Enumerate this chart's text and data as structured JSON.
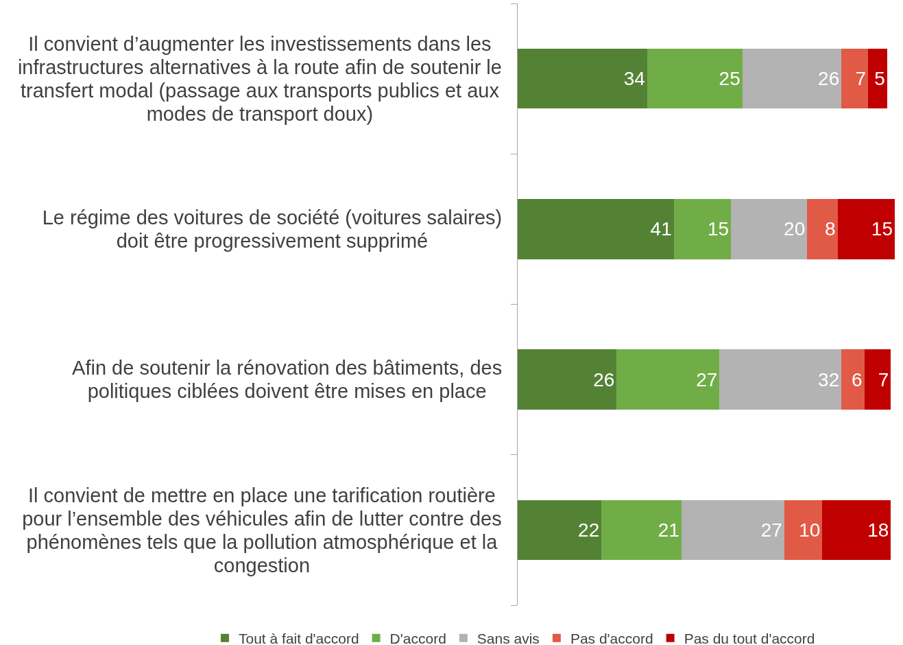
{
  "chart_data": {
    "type": "bar",
    "orientation": "horizontal",
    "stacked": true,
    "categories": [
      "Il convient d’augmenter les investissements dans les infrastructures alternatives à la route afin de soutenir le transfert modal (passage aux transports publics et aux modes de transport doux)",
      "Le régime des voitures de société (voitures salaires) doit être progressivement supprimé",
      "Afin de soutenir la rénovation des bâtiments, des politiques ciblées doivent être mises en place",
      "Il convient de mettre en place une tarification routière pour l’ensemble des véhicules afin de lutter contre des phénomènes tels que la pollution atmosphérique et la congestion"
    ],
    "series": [
      {
        "name": "Tout à fait d'accord",
        "color": "#548235",
        "values": [
          34,
          41,
          26,
          22
        ]
      },
      {
        "name": "D'accord",
        "color": "#70ad47",
        "values": [
          25,
          15,
          27,
          21
        ]
      },
      {
        "name": "Sans avis",
        "color": "#b3b3b3",
        "values": [
          26,
          20,
          32,
          27
        ]
      },
      {
        "name": "Pas d'accord",
        "color": "#e05a45",
        "values": [
          7,
          8,
          6,
          10
        ]
      },
      {
        "name": "Pas du tout d'accord",
        "color": "#c00000",
        "values": [
          5,
          15,
          7,
          18
        ]
      }
    ],
    "data_labels": true,
    "legend": "bottom",
    "tick_labels": "y"
  }
}
